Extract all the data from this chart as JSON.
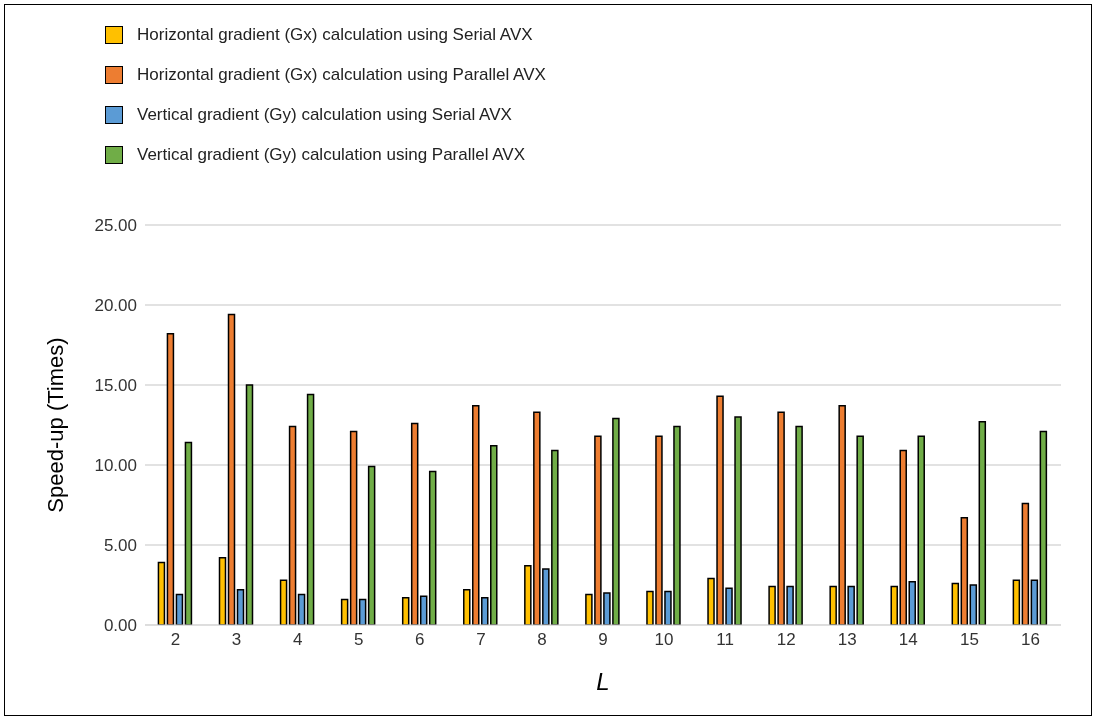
{
  "chart_data": {
    "type": "bar",
    "xlabel": "L",
    "ylabel": "Speed-up  (Times)",
    "categories": [
      "2",
      "3",
      "4",
      "5",
      "6",
      "7",
      "8",
      "9",
      "10",
      "11",
      "12",
      "13",
      "14",
      "15",
      "16"
    ],
    "series": [
      {
        "name": "Horizontal gradient (Gx) calculation using Serial AVX",
        "color": "#ffc000",
        "values": [
          3.9,
          4.2,
          2.8,
          1.6,
          1.7,
          2.2,
          3.7,
          1.9,
          2.1,
          2.9,
          2.4,
          2.4,
          2.4,
          2.6,
          2.8
        ]
      },
      {
        "name": "Horizontal gradient (Gx) calculation using Parallel AVX",
        "color": "#ed7d31",
        "values": [
          18.2,
          19.4,
          12.4,
          12.1,
          12.6,
          13.7,
          13.3,
          11.8,
          11.8,
          14.3,
          13.3,
          13.7,
          10.9,
          6.7,
          7.6
        ]
      },
      {
        "name": "Vertical gradient (Gy) calculation using Serial AVX",
        "color": "#5b9bd5",
        "values": [
          1.9,
          2.2,
          1.9,
          1.6,
          1.8,
          1.7,
          3.5,
          2.0,
          2.1,
          2.3,
          2.4,
          2.4,
          2.7,
          2.5,
          2.8
        ]
      },
      {
        "name": "Vertical gradient (Gy) calculation using Parallel AVX",
        "color": "#70ad47",
        "values": [
          11.4,
          15.0,
          14.4,
          9.9,
          9.6,
          11.2,
          10.9,
          12.9,
          12.4,
          13.0,
          12.4,
          11.8,
          11.8,
          12.7,
          12.1
        ]
      }
    ],
    "ylim": [
      0,
      25
    ],
    "yticks": [
      {
        "value": 0,
        "label": "0.00"
      },
      {
        "value": 5,
        "label": "5.00"
      },
      {
        "value": 10,
        "label": "10.00"
      },
      {
        "value": 15,
        "label": "15.00"
      },
      {
        "value": 20,
        "label": "20.00"
      },
      {
        "value": 25,
        "label": "25.00"
      }
    ],
    "grid": "y",
    "legend": "top left"
  }
}
